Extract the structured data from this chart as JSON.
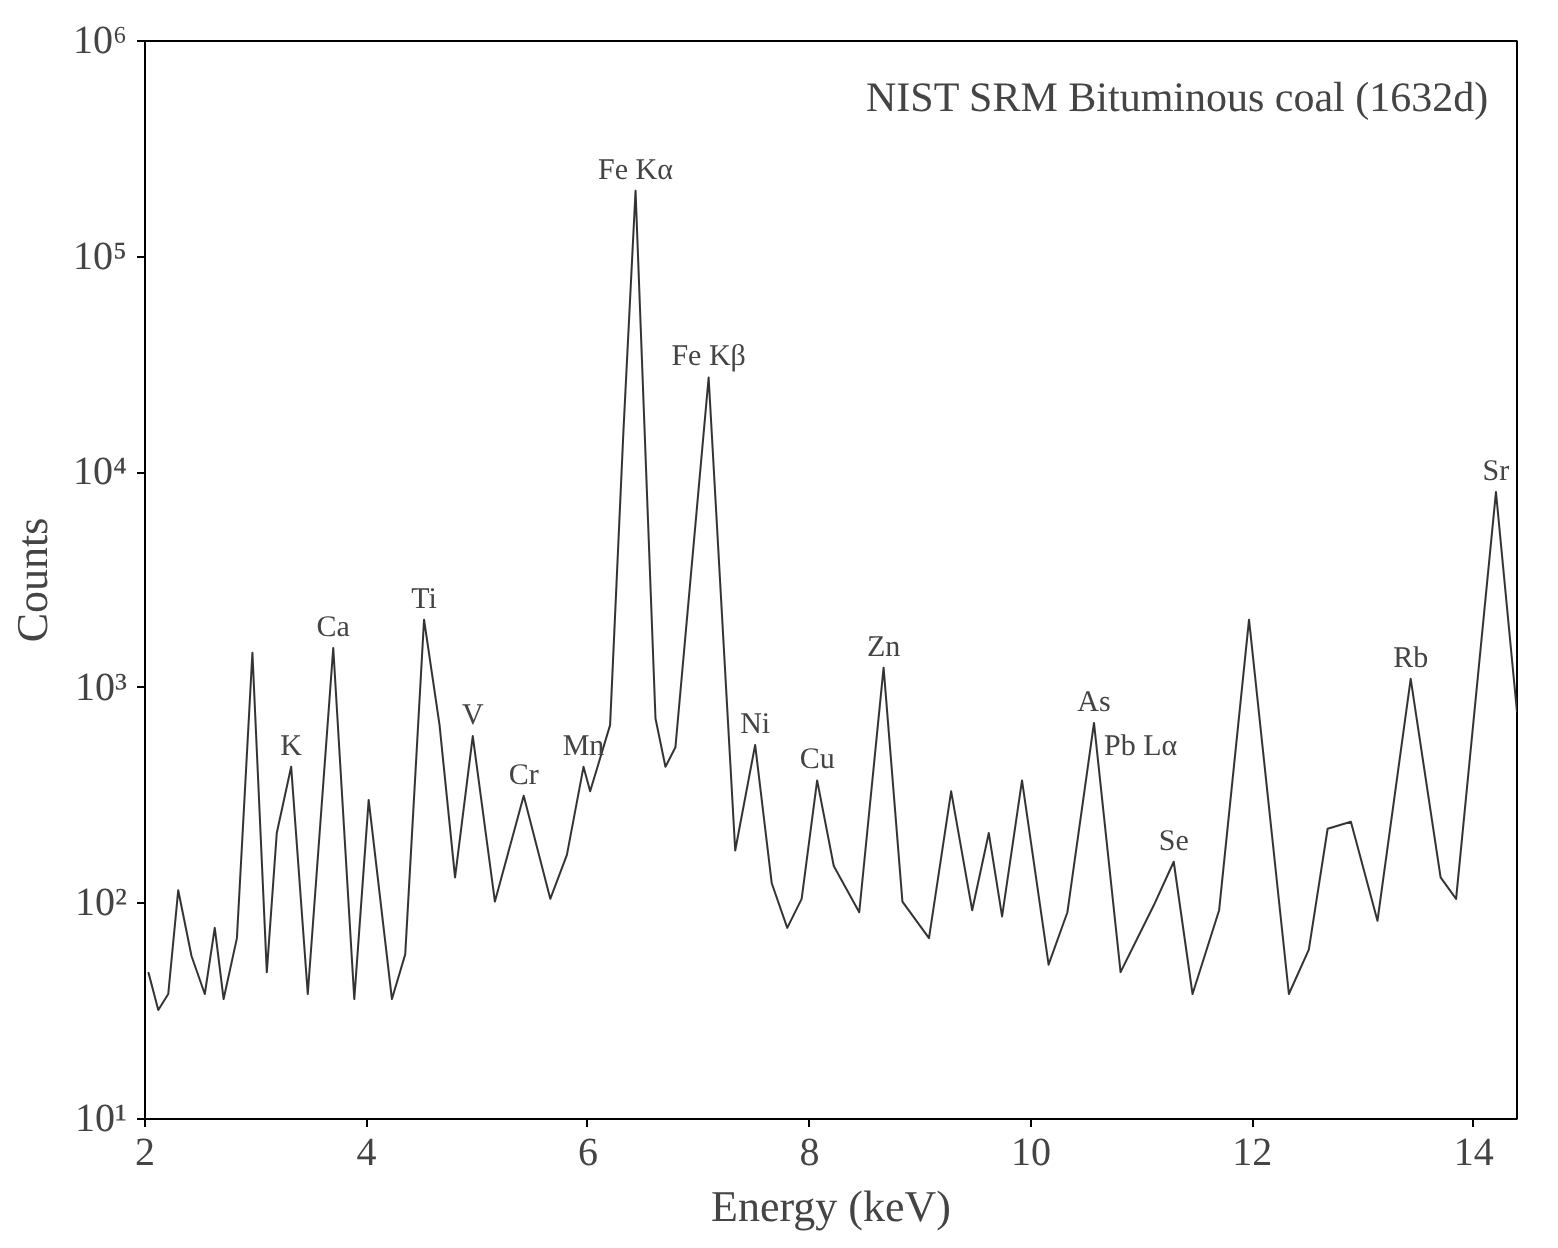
{
  "chart_data": {
    "type": "line",
    "title": "NIST SRM Bituminous coal (1632d)",
    "xlabel": "Energy (keV)",
    "ylabel": "Counts",
    "log": "y",
    "xlim": [
      2,
      14.39
    ],
    "xticks": [
      2,
      4,
      6,
      8,
      10,
      12,
      14
    ],
    "ylim": [
      10,
      1000000
    ],
    "yticks": [
      {
        "value": 10,
        "label": "10¹"
      },
      {
        "value": 100,
        "label": "10²"
      },
      {
        "value": 1000,
        "label": "10³"
      },
      {
        "value": 10000,
        "label": "10⁴"
      },
      {
        "value": 100000,
        "label": "10⁵"
      },
      {
        "value": 1000000,
        "label": "10⁶"
      }
    ],
    "series": [
      {
        "color": "#333333",
        "x": [
          2.03,
          2.12,
          2.21,
          2.3,
          2.42,
          2.54,
          2.63,
          2.71,
          2.83,
          2.97,
          3.1,
          3.19,
          3.32,
          3.47,
          3.7,
          3.89,
          4.02,
          4.23,
          4.35,
          4.52,
          4.66,
          4.8,
          4.96,
          5.16,
          5.42,
          5.66,
          5.81,
          5.96,
          6.02,
          6.2,
          6.32,
          6.43,
          6.61,
          6.7,
          6.79,
          7.09,
          7.33,
          7.51,
          7.66,
          7.8,
          7.93,
          8.07,
          8.22,
          8.45,
          8.67,
          8.84,
          9.08,
          9.28,
          9.47,
          9.62,
          9.74,
          9.92,
          10.16,
          10.33,
          10.57,
          10.81,
          11.11,
          11.29,
          11.46,
          11.7,
          11.97,
          12.33,
          12.51,
          12.68,
          12.89,
          13.13,
          13.43,
          13.7,
          13.84,
          14.2,
          14.39
        ],
        "values": [
          48,
          32,
          38,
          115,
          57,
          38,
          77,
          36,
          69,
          1455,
          48,
          212,
          430,
          38,
          1530,
          36,
          302,
          36,
          58,
          2070,
          671,
          132,
          597,
          102,
          316,
          105,
          168,
          430,
          331,
          671,
          15300,
          202000,
          720,
          430,
          530,
          27500,
          176,
          543,
          124,
          77,
          105,
          372,
          149,
          91,
          1240,
          102,
          69,
          331,
          93,
          212,
          87,
          372,
          52,
          91,
          687,
          48,
          98,
          156,
          38,
          93,
          2070,
          38,
          61,
          222,
          239,
          83,
          1100,
          132,
          105,
          8090,
          773
        ]
      }
    ],
    "annotations": [
      {
        "text": "K",
        "x": 3.32,
        "y": 430
      },
      {
        "text": "Ca",
        "x": 3.7,
        "y": 1530
      },
      {
        "text": "Ti",
        "x": 4.52,
        "y": 2070
      },
      {
        "text": "V",
        "x": 4.96,
        "y": 597
      },
      {
        "text": "Cr",
        "x": 5.42,
        "y": 316
      },
      {
        "text": "Mn",
        "x": 5.96,
        "y": 430
      },
      {
        "text": "Fe Kα",
        "x": 6.43,
        "y": 202000
      },
      {
        "text": "Fe Kβ",
        "x": 7.09,
        "y": 27500
      },
      {
        "text": "Ni",
        "x": 7.51,
        "y": 543
      },
      {
        "text": "Cu",
        "x": 8.07,
        "y": 372
      },
      {
        "text": "Zn",
        "x": 8.67,
        "y": 1240
      },
      {
        "text": "As",
        "x": 10.57,
        "y": 687
      },
      {
        "text": "Pb Lα",
        "x": 10.57,
        "y": 687
      },
      {
        "text": "Se",
        "x": 11.29,
        "y": 156
      },
      {
        "text": "Rb",
        "x": 13.43,
        "y": 1100
      },
      {
        "text": "Sr",
        "x": 14.2,
        "y": 8090
      }
    ]
  }
}
